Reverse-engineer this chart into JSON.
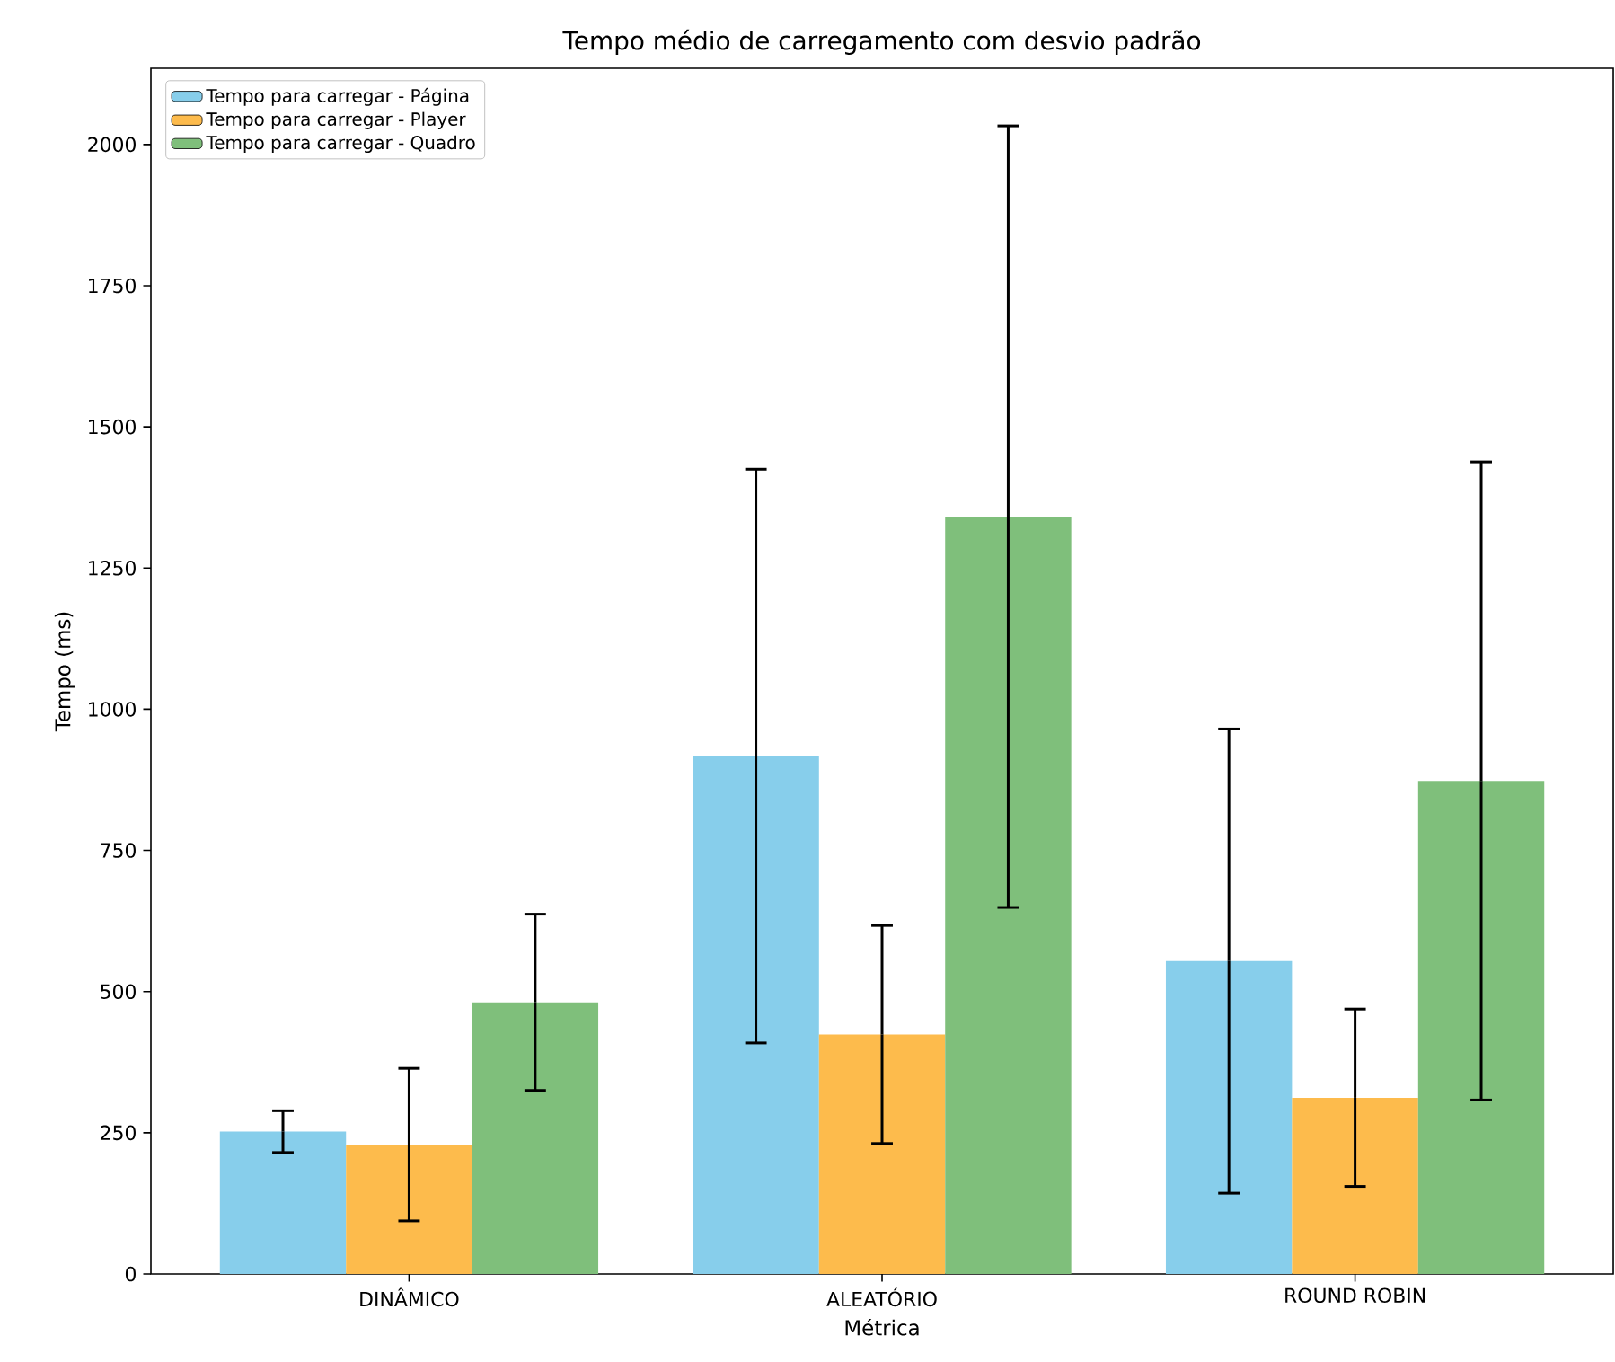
{
  "chart_data": {
    "type": "bar",
    "title": "Tempo médio de carregamento com desvio padrão",
    "xlabel": "Métrica",
    "ylabel": "Tempo (ms)",
    "categories": [
      "DINÂMICO",
      "ALEATÓRIO",
      "ROUND ROBIN"
    ],
    "series": [
      {
        "name": "Tempo para carregar - Página",
        "color": "#87ceeb",
        "values": [
          252,
          917,
          554
        ],
        "errors": [
          37,
          508,
          411
        ]
      },
      {
        "name": "Tempo para carregar - Player",
        "color": "#fdbb4c",
        "values": [
          229,
          424,
          312
        ],
        "errors": [
          135,
          193,
          157
        ]
      },
      {
        "name": "Tempo para carregar - Quadro",
        "color": "#7fbf7b",
        "values": [
          481,
          1341,
          873
        ],
        "errors": [
          156,
          692,
          565
        ]
      }
    ],
    "ylim": [
      0,
      2135
    ],
    "yticks": [
      0,
      250,
      500,
      750,
      1000,
      1250,
      1500,
      1750,
      2000
    ],
    "legend": "top left"
  }
}
